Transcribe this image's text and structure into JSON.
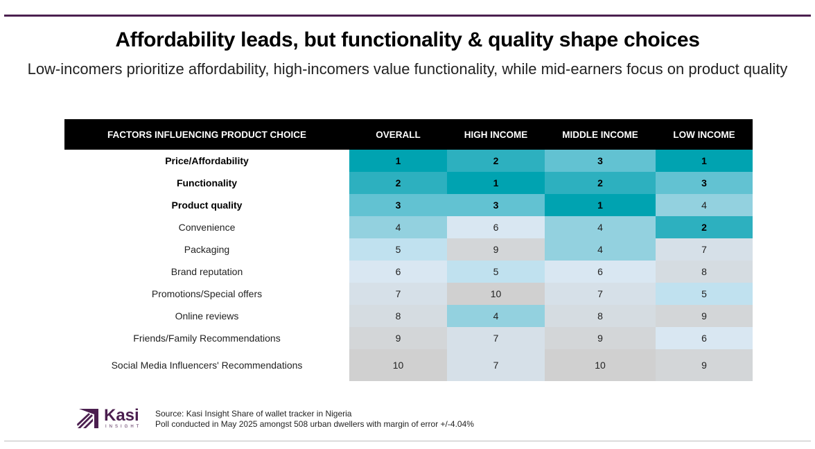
{
  "title": "Affordability leads, but functionality & quality shape  choices",
  "subtitle": "Low-incomers prioritize affordability, high-incomers value functionality, while mid-earners focus on product quality",
  "table": {
    "headers": [
      "FACTORS INFLUENCING PRODUCT CHOICE",
      "OVERALL",
      "HIGH INCOME",
      "MIDDLE INCOME",
      "LOW INCOME"
    ],
    "rows": [
      {
        "label": "Price/Affordability",
        "bold": true,
        "values": [
          1,
          2,
          3,
          1
        ]
      },
      {
        "label": "Functionality",
        "bold": true,
        "values": [
          2,
          1,
          2,
          3
        ]
      },
      {
        "label": "Product quality",
        "bold": true,
        "values": [
          3,
          3,
          1,
          4
        ]
      },
      {
        "label": "Convenience",
        "bold": false,
        "values": [
          4,
          6,
          4,
          2
        ]
      },
      {
        "label": "Packaging",
        "bold": false,
        "values": [
          5,
          9,
          4,
          7
        ]
      },
      {
        "label": "Brand reputation",
        "bold": false,
        "values": [
          6,
          5,
          6,
          8
        ]
      },
      {
        "label": "Promotions/Special offers",
        "bold": false,
        "values": [
          7,
          10,
          7,
          5
        ]
      },
      {
        "label": "Online reviews",
        "bold": false,
        "values": [
          8,
          4,
          8,
          9
        ]
      },
      {
        "label": "Friends/Family Recommendations",
        "bold": false,
        "values": [
          9,
          7,
          9,
          6
        ]
      },
      {
        "label": "Social Media Influencers' Recommendations",
        "bold": false,
        "values": [
          10,
          7,
          10,
          9
        ]
      }
    ]
  },
  "rank_colors": {
    "1": "#00a3b1",
    "2": "#2db0bf",
    "3": "#62c2d2",
    "4": "#93d1df",
    "5": "#c0e1ef",
    "6": "#d9e7f2",
    "7": "#d6e0e8",
    "8": "#d5dce1",
    "9": "#d3d6d8",
    "10": "#d0d0d0"
  },
  "footer": {
    "logo_word": "Kasi",
    "logo_sub": "INSIGHT",
    "source": "Source: Kasi Insight Share of wallet tracker in Nigeria",
    "poll": "Poll conducted in May 2025 amongst 508 urban dwellers with margin of error +/-4.04%"
  },
  "accent": "#4b1f4f"
}
